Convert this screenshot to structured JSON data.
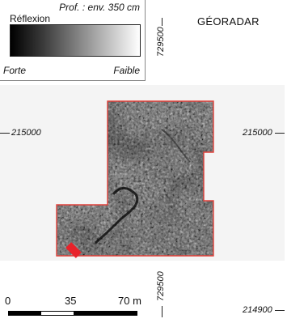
{
  "map": {
    "title": "GÉORADAR",
    "legend": {
      "depth": "Prof. : env. 350 cm",
      "title": "Réflexion",
      "min_label": "Forte",
      "max_label": "Faible"
    },
    "coordinates": {
      "left_easting": "215000",
      "right_easting_top": "215000",
      "right_easting_bottom": "214900",
      "northing_top": "729500",
      "northing_bottom": "729500"
    },
    "scale": {
      "labels": [
        "0",
        "35",
        "70 m"
      ]
    },
    "colors": {
      "survey_outline": "#e0403a",
      "marker": "#e8222a",
      "background": "#f4f4f4"
    }
  }
}
